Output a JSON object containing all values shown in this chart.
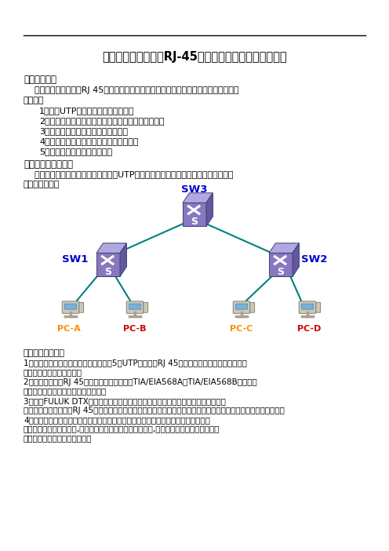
{
  "title": "实践四：制作双绞线RJ-45连接头和网络互联设备的选择",
  "section1_header": "【实践目的】",
  "section1_line1": "    通过实践掌握双绞线RJ 45连接头的制作，以及网络互联设备的选择。本次实践的主要",
  "section1_line2": "目的是：",
  "section1_items": [
    "1、掌握UTP直通线、交叉线的制作。",
    "2、验证网络设备配置的正确性，测试网络的连通性。",
    "3、按要求进行连线并配置网络设备。",
    "4、记录操作过程中相关参数并进行分析。",
    "5、学会网络互联设备的选择。"
  ],
  "section2_header": "【实践内容与步骤】",
  "section2_line1": "    根据上一章的实践项目，按下图制作UTP直通线、交叉线，并进行相关网络互联设备",
  "section2_line2": "的选择与连通。",
  "section3_header": "实践环境和步骤：",
  "section3_items": [
    [
      "1、根据要求，分组进行实践，每组配给5类UTP若干米，RJ 45接头若干个，双绞线压钳一把，",
      "剥线钳一把，测试仪一套。"
    ],
    [
      "2、接照双绞线与RJ 45连接头的接线标准，即TIA/EIA568A和TIA/EIA568B的两个标",
      "准，分别进行直通线、交叉线的制作。"
    ],
    [
      "3、使用FULUK DTX网络测试仪分别对所制作的直通线和交叉线进行测试，测试方法",
      "为：分别作好直通线的RJ 45连接头插入网络测试仪的主机，另一端插入网络测试仪的智能远端，进行连通状况测试。"
    ],
    [
      "4、先制作两条用于测试的双绞线，其中一条是直通线，另一条是交叉线。之后，用其",
      "中的一条连接两台交换机,这时注意观察接接口对应的指示灯,如果指示灯亮表示连接正常，",
      "否则换另一条双绞线进行测试。"
    ]
  ],
  "bg_color": "#ffffff",
  "text_color": "#000000",
  "title_color": "#000000",
  "sw_label_color": "#0000cc",
  "pc_a_color": "#ff8c00",
  "pc_b_color": "#cc0000",
  "pc_c_color": "#ff8c00",
  "pc_d_color": "#cc0000",
  "sw3_label_color": "#0000cc",
  "line_color": "#008080",
  "switch_face_color": "#8878c0",
  "switch_top_color": "#b0a8e0",
  "switch_side_color": "#6058a0"
}
